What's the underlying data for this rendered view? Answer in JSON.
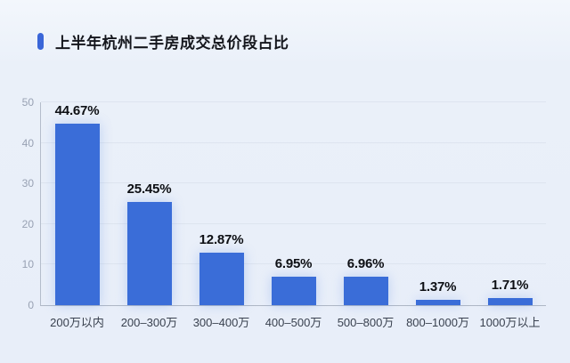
{
  "header": {
    "title": "上半年杭州二手房成交总价段占比"
  },
  "chart_data": {
    "type": "bar",
    "title": "上半年杭州二手房成交总价段占比",
    "categories": [
      "200万以内",
      "200–300万",
      "300–400万",
      "400–500万",
      "500–800万",
      "800–1000万",
      "1000万以上"
    ],
    "values": [
      44.67,
      25.45,
      12.87,
      6.95,
      6.96,
      1.37,
      1.71
    ],
    "value_labels": [
      "44.67%",
      "25.45%",
      "12.87%",
      "6.95%",
      "6.96%",
      "1.37%",
      "1.71%"
    ],
    "xlabel": "",
    "ylabel": "",
    "ylim": [
      0,
      50
    ],
    "yticks": [
      0,
      10,
      20,
      30,
      40,
      50
    ],
    "grid": true,
    "legend": "none"
  },
  "colors": {
    "background": "#e9eff9",
    "accent": "#3a66d8",
    "bar": "#3a6dd8",
    "value_text": "#0d0f14",
    "category_text": "#39414f",
    "tick_text": "#98a1b3",
    "gridline": "#dde4ef",
    "axis_line": "#aeb7c5"
  }
}
